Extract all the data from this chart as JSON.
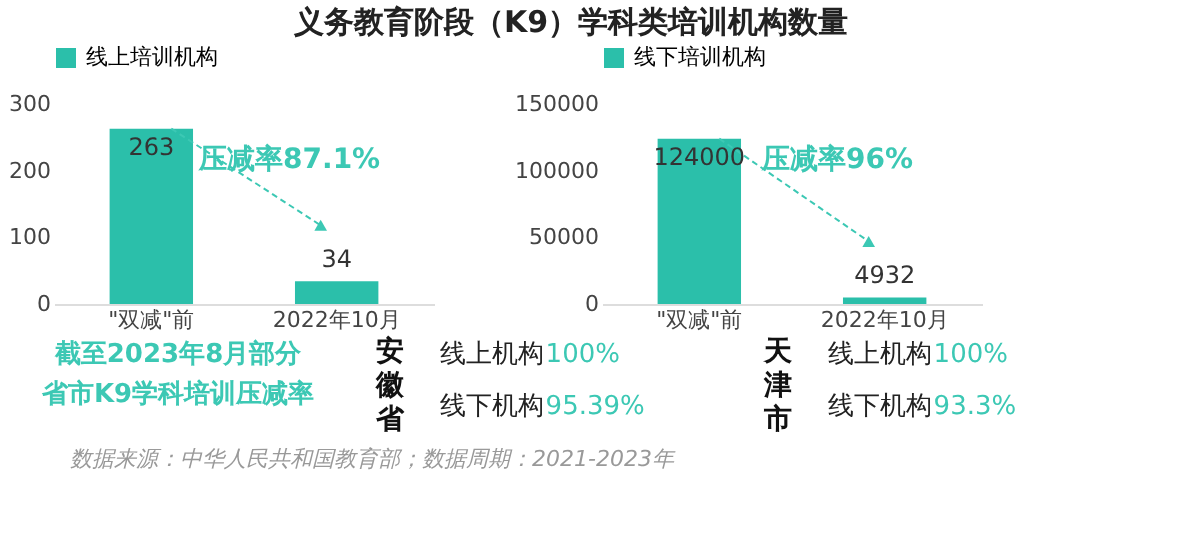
{
  "chart_data": [
    {
      "type": "bar",
      "title": "义务教育阶段（K9）学科类培训机构数量",
      "categories": [
        "\"双减\"前",
        "2022年10月"
      ],
      "series": [
        {
          "name": "线上培训机构",
          "color": "#2bbfaa",
          "values": [
            263,
            34
          ]
        }
      ],
      "ylim": [
        0,
        300
      ],
      "yticks": [
        0,
        100,
        200,
        300
      ],
      "data_labels": true,
      "legend": "top",
      "annotations": [
        "压减率87.1%"
      ]
    },
    {
      "type": "bar",
      "categories": [
        "\"双减\"前",
        "2022年10月"
      ],
      "series": [
        {
          "name": "线下培训机构",
          "color": "#2bbfaa",
          "values": [
            124000,
            4932
          ]
        }
      ],
      "ylim": [
        0,
        150000
      ],
      "yticks": [
        0,
        50000,
        100000,
        150000
      ],
      "data_labels": true,
      "legend": "top",
      "annotations": [
        "压减率96%"
      ]
    },
    {
      "type": "other",
      "annotations": [
        "截至2023年8月部分",
        "省市K9学科培训压减率",
        "安徽省",
        "线上机构100%",
        "线下机构95.39%",
        "天津市",
        "线上机构100%",
        "线下机构93.3%",
        "数据来源：中华人民共和国教育部；数据周期：2021-2023年"
      ]
    }
  ]
}
